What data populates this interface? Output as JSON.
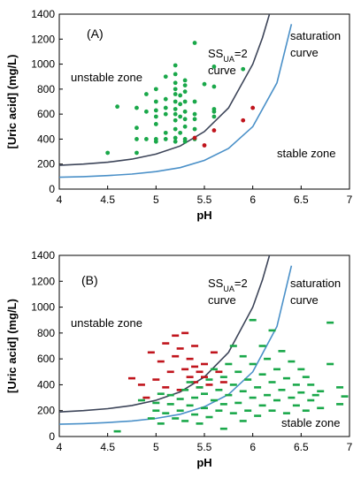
{
  "chart_data": [
    {
      "type": "scatter",
      "panel_label": "(A)",
      "xlabel": "pH",
      "ylabel": "[Uric acid] (mg/L)",
      "xlim": [
        4,
        7
      ],
      "ylim": [
        0,
        1400
      ],
      "x_ticks": [
        "4",
        "4.5",
        "5",
        "5.5",
        "6",
        "6.5",
        "7"
      ],
      "y_ticks": [
        "0",
        "200",
        "400",
        "600",
        "800",
        "1000",
        "1200",
        "1400"
      ],
      "grid": false,
      "marker": "dot",
      "colors": {
        "green": "#1aa84a",
        "red": "#c0141c",
        "ss_curve": "#3c4458",
        "sat_curve": "#4a90c8"
      },
      "curves": [
        {
          "label": [
            "SS",
            "UA",
            "=2",
            "curve"
          ],
          "color": "#3c4458",
          "x": [
            4.0,
            4.25,
            4.5,
            4.75,
            5.0,
            5.25,
            5.5,
            5.75,
            6.0,
            6.1,
            6.2
          ],
          "y": [
            190,
            200,
            215,
            240,
            280,
            345,
            460,
            650,
            1000,
            1210,
            1470
          ]
        },
        {
          "label": [
            "saturation",
            "curve"
          ],
          "color": "#4a90c8",
          "x": [
            4.0,
            4.25,
            4.5,
            4.75,
            5.0,
            5.25,
            5.5,
            5.75,
            6.0,
            6.25,
            6.4
          ],
          "y": [
            95,
            100,
            108,
            120,
            140,
            172,
            230,
            325,
            500,
            850,
            1320
          ]
        }
      ],
      "annotations": [
        "unstable zone",
        "stable zone"
      ],
      "series": [
        {
          "color": "green",
          "points": [
            [
              4.5,
              290
            ],
            [
              4.6,
              660
            ],
            [
              4.8,
              290
            ],
            [
              4.8,
              400
            ],
            [
              4.8,
              490
            ],
            [
              4.8,
              650
            ],
            [
              4.9,
              400
            ],
            [
              4.9,
              620
            ],
            [
              4.9,
              760
            ],
            [
              5.0,
              380
            ],
            [
              5.0,
              400
            ],
            [
              5.0,
              520
            ],
            [
              5.0,
              580
            ],
            [
              5.0,
              630
            ],
            [
              5.0,
              700
            ],
            [
              5.0,
              800
            ],
            [
              5.1,
              400
            ],
            [
              5.1,
              450
            ],
            [
              5.1,
              600
            ],
            [
              5.1,
              650
            ],
            [
              5.1,
              720
            ],
            [
              5.1,
              900
            ],
            [
              5.2,
              380
            ],
            [
              5.2,
              410
            ],
            [
              5.2,
              480
            ],
            [
              5.2,
              550
            ],
            [
              5.2,
              600
            ],
            [
              5.2,
              640
            ],
            [
              5.2,
              700
            ],
            [
              5.2,
              760
            ],
            [
              5.2,
              800
            ],
            [
              5.2,
              850
            ],
            [
              5.2,
              920
            ],
            [
              5.2,
              990
            ],
            [
              5.25,
              450
            ],
            [
              5.25,
              580
            ],
            [
              5.25,
              680
            ],
            [
              5.25,
              750
            ],
            [
              5.3,
              380
            ],
            [
              5.3,
              400
            ],
            [
              5.3,
              500
            ],
            [
              5.3,
              560
            ],
            [
              5.3,
              620
            ],
            [
              5.3,
              700
            ],
            [
              5.3,
              780
            ],
            [
              5.3,
              830
            ],
            [
              5.3,
              870
            ],
            [
              5.4,
              400
            ],
            [
              5.4,
              480
            ],
            [
              5.4,
              560
            ],
            [
              5.4,
              600
            ],
            [
              5.4,
              700
            ],
            [
              5.4,
              1170
            ],
            [
              5.5,
              840
            ],
            [
              5.6,
              580
            ],
            [
              5.6,
              620
            ],
            [
              5.6,
              640
            ],
            [
              5.6,
              820
            ],
            [
              5.6,
              980
            ],
            [
              5.9,
              960
            ]
          ]
        },
        {
          "color": "red",
          "points": [
            [
              5.4,
              410
            ],
            [
              5.5,
              350
            ],
            [
              5.6,
              470
            ],
            [
              5.9,
              550
            ],
            [
              6.0,
              650
            ]
          ]
        }
      ]
    },
    {
      "type": "scatter",
      "panel_label": "(B)",
      "xlabel": "pH",
      "ylabel": "[Uric acid] (mg/L)",
      "xlim": [
        4,
        7
      ],
      "ylim": [
        0,
        1400
      ],
      "x_ticks": [
        "4",
        "4.5",
        "5",
        "5.5",
        "6",
        "6.5",
        "7"
      ],
      "y_ticks": [
        "0",
        "200",
        "400",
        "600",
        "800",
        "1000",
        "1200",
        "1400"
      ],
      "grid": false,
      "marker": "dash",
      "colors": {
        "green": "#1aa84a",
        "red": "#c0141c",
        "ss_curve": "#3c4458",
        "sat_curve": "#4a90c8"
      },
      "curves": [
        {
          "label": [
            "SS",
            "UA",
            "=2",
            "curve"
          ],
          "color": "#3c4458",
          "x": [
            4.0,
            4.25,
            4.5,
            4.75,
            5.0,
            5.25,
            5.5,
            5.75,
            6.0,
            6.1,
            6.2
          ],
          "y": [
            190,
            200,
            215,
            240,
            280,
            345,
            460,
            650,
            1000,
            1210,
            1470
          ]
        },
        {
          "label": [
            "saturation",
            "curve"
          ],
          "color": "#4a90c8",
          "x": [
            4.0,
            4.25,
            4.5,
            4.75,
            5.0,
            5.25,
            5.5,
            5.75,
            6.0,
            6.25,
            6.4
          ],
          "y": [
            95,
            100,
            108,
            120,
            140,
            172,
            230,
            325,
            500,
            850,
            1320
          ]
        }
      ],
      "annotations": [
        "unstable zone",
        "stable zone"
      ],
      "series": [
        {
          "color": "red",
          "points": [
            [
              4.75,
              450
            ],
            [
              4.85,
              400
            ],
            [
              4.9,
              300
            ],
            [
              4.95,
              650
            ],
            [
              5.0,
              440
            ],
            [
              5.05,
              580
            ],
            [
              5.1,
              380
            ],
            [
              5.1,
              720
            ],
            [
              5.15,
              500
            ],
            [
              5.2,
              780
            ],
            [
              5.2,
              620
            ],
            [
              5.25,
              360
            ],
            [
              5.25,
              680
            ],
            [
              5.3,
              520
            ],
            [
              5.3,
              800
            ],
            [
              5.35,
              460
            ],
            [
              5.35,
              600
            ],
            [
              5.4,
              420
            ],
            [
              5.4,
              540
            ],
            [
              5.4,
              700
            ],
            [
              5.45,
              380
            ],
            [
              5.45,
              500
            ],
            [
              5.5,
              460
            ],
            [
              5.5,
              560
            ],
            [
              5.55,
              400
            ],
            [
              5.6,
              650
            ],
            [
              5.65,
              500
            ],
            [
              5.7,
              420
            ]
          ]
        },
        {
          "color": "green",
          "points": [
            [
              4.6,
              40
            ],
            [
              4.85,
              280
            ],
            [
              4.95,
              140
            ],
            [
              5.0,
              200
            ],
            [
              5.0,
              260
            ],
            [
              5.05,
              100
            ],
            [
              5.05,
              330
            ],
            [
              5.1,
              180
            ],
            [
              5.15,
              250
            ],
            [
              5.15,
              320
            ],
            [
              5.2,
              140
            ],
            [
              5.25,
              200
            ],
            [
              5.25,
              290
            ],
            [
              5.3,
              120
            ],
            [
              5.3,
              360
            ],
            [
              5.35,
              240
            ],
            [
              5.35,
              420
            ],
            [
              5.4,
              170
            ],
            [
              5.4,
              300
            ],
            [
              5.45,
              100
            ],
            [
              5.45,
              380
            ],
            [
              5.5,
              220
            ],
            [
              5.5,
              330
            ],
            [
              5.55,
              150
            ],
            [
              5.55,
              440
            ],
            [
              5.6,
              280
            ],
            [
              5.6,
              520
            ],
            [
              5.65,
              200
            ],
            [
              5.65,
              360
            ],
            [
              5.7,
              60
            ],
            [
              5.7,
              250
            ],
            [
              5.7,
              460
            ],
            [
              5.75,
              320
            ],
            [
              5.75,
              560
            ],
            [
              5.8,
              180
            ],
            [
              5.8,
              400
            ],
            [
              5.8,
              700
            ],
            [
              5.85,
              260
            ],
            [
              5.85,
              500
            ],
            [
              5.9,
              120
            ],
            [
              5.9,
              350
            ],
            [
              5.9,
              620
            ],
            [
              5.95,
              200
            ],
            [
              5.95,
              440
            ],
            [
              6.0,
              300
            ],
            [
              6.0,
              560
            ],
            [
              6.0,
              900
            ],
            [
              6.05,
              160
            ],
            [
              6.05,
              380
            ],
            [
              6.1,
              240
            ],
            [
              6.1,
              480
            ],
            [
              6.1,
              700
            ],
            [
              6.15,
              320
            ],
            [
              6.15,
              600
            ],
            [
              6.2,
              200
            ],
            [
              6.2,
              420
            ],
            [
              6.2,
              820
            ],
            [
              6.25,
              280
            ],
            [
              6.25,
              520
            ],
            [
              6.3,
              360
            ],
            [
              6.3,
              660
            ],
            [
              6.35,
              180
            ],
            [
              6.35,
              450
            ],
            [
              6.4,
              300
            ],
            [
              6.4,
              580
            ],
            [
              6.45,
              240
            ],
            [
              6.45,
              400
            ],
            [
              6.5,
              340
            ],
            [
              6.5,
              520
            ],
            [
              6.55,
              200
            ],
            [
              6.55,
              460
            ],
            [
              6.6,
              280
            ],
            [
              6.6,
              400
            ],
            [
              6.65,
              320
            ],
            [
              6.7,
              350
            ],
            [
              6.7,
              220
            ],
            [
              6.8,
              880
            ],
            [
              6.8,
              560
            ],
            [
              6.9,
              380
            ],
            [
              6.9,
              250
            ],
            [
              6.95,
              310
            ]
          ]
        }
      ]
    }
  ]
}
